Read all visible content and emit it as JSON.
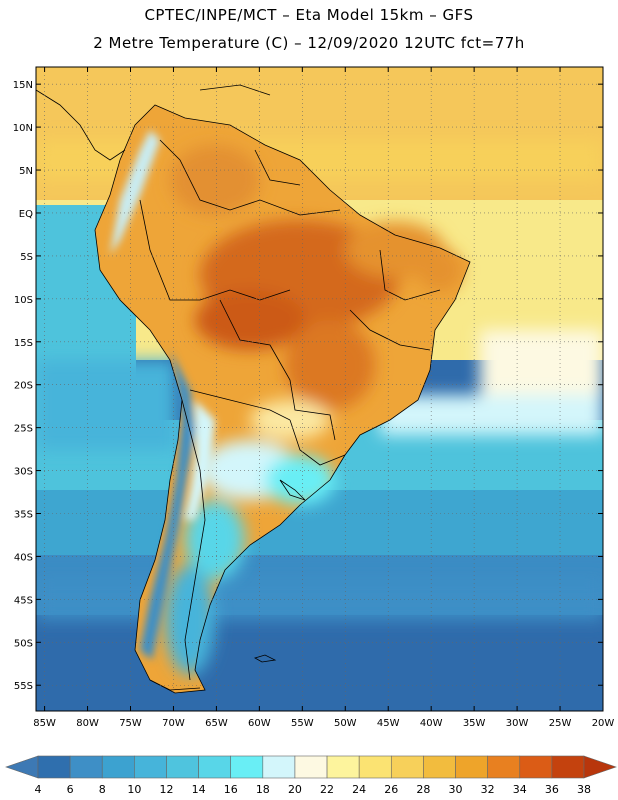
{
  "title_line1": "CPTEC/INPE/MCT –  Eta Model 15km – GFS",
  "title_line2": "2 Metre Temperature (C) – 12/09/2020 12UTC fct=77h",
  "lat_labels": [
    "15N",
    "10N",
    "5N",
    "EQ",
    "5S",
    "10S",
    "15S",
    "20S",
    "25S",
    "30S",
    "35S",
    "40S",
    "45S",
    "50S",
    "55S"
  ],
  "lon_labels": [
    "85W",
    "80W",
    "75W",
    "70W",
    "65W",
    "60W",
    "55W",
    "50W",
    "45W",
    "40W",
    "35W",
    "30W",
    "25W",
    "20W"
  ],
  "colorbar": {
    "values": [
      "4",
      "6",
      "8",
      "10",
      "12",
      "14",
      "16",
      "18",
      "20",
      "22",
      "24",
      "26",
      "28",
      "30",
      "32",
      "34",
      "36",
      "38"
    ],
    "colors": [
      "#3d79b4",
      "#2f6fae",
      "#3e8fc6",
      "#3ca2d0",
      "#46b4da",
      "#4fc4de",
      "#58d6e8",
      "#69eef5",
      "#d3f6fb",
      "#fdf9e2",
      "#fdf49d",
      "#fbe372",
      "#f7d05a",
      "#f2bc3e",
      "#eea42a",
      "#e88020",
      "#db5c16",
      "#c4420e",
      "#b8360c"
    ]
  },
  "colors": {
    "ocean_cold": "#2f6bab",
    "ocean_mid": "#4ec3dc",
    "ocean_warm": "#f8e98a",
    "land_hot": "#d4691c",
    "land_warm": "#eea538"
  }
}
